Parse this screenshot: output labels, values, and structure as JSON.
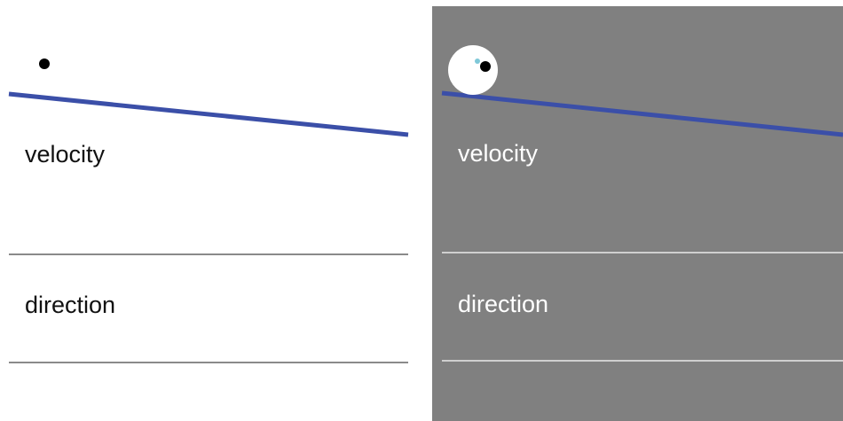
{
  "colors": {
    "slope_line": "#3b4fa8",
    "left_background": "#ffffff",
    "right_background": "#808080",
    "cursor_dot": "#7fc8d8"
  },
  "left_panel": {
    "velocity_label": "velocity",
    "direction_label": "direction"
  },
  "right_panel": {
    "velocity_label": "velocity",
    "direction_label": "direction"
  }
}
